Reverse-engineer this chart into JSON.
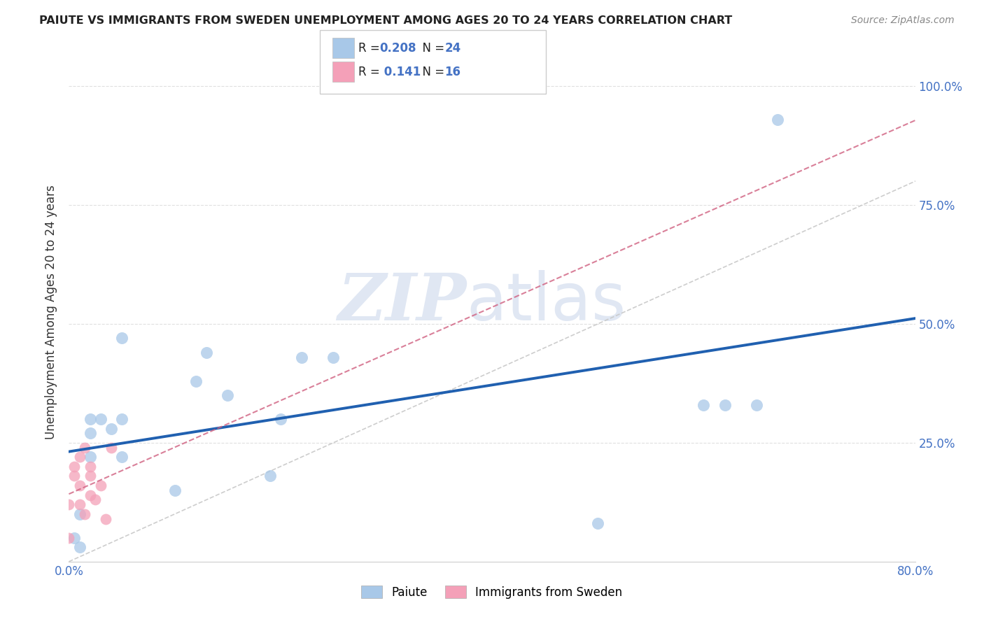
{
  "title": "PAIUTE VS IMMIGRANTS FROM SWEDEN UNEMPLOYMENT AMONG AGES 20 TO 24 YEARS CORRELATION CHART",
  "source": "Source: ZipAtlas.com",
  "ylabel": "Unemployment Among Ages 20 to 24 years",
  "xlim": [
    0.0,
    0.8
  ],
  "ylim": [
    0.0,
    1.05
  ],
  "paiute_x": [
    0.005,
    0.01,
    0.01,
    0.02,
    0.02,
    0.02,
    0.03,
    0.04,
    0.05,
    0.05,
    0.05,
    0.1,
    0.12,
    0.13,
    0.15,
    0.19,
    0.2,
    0.22,
    0.25,
    0.5,
    0.6,
    0.62,
    0.65,
    0.67
  ],
  "paiute_y": [
    0.05,
    0.03,
    0.1,
    0.22,
    0.27,
    0.3,
    0.3,
    0.28,
    0.3,
    0.22,
    0.47,
    0.15,
    0.38,
    0.44,
    0.35,
    0.18,
    0.3,
    0.43,
    0.43,
    0.08,
    0.33,
    0.33,
    0.33,
    0.93
  ],
  "sweden_x": [
    0.0,
    0.0,
    0.005,
    0.005,
    0.01,
    0.01,
    0.01,
    0.015,
    0.015,
    0.02,
    0.02,
    0.02,
    0.025,
    0.03,
    0.035,
    0.04
  ],
  "sweden_y": [
    0.05,
    0.12,
    0.18,
    0.2,
    0.12,
    0.16,
    0.22,
    0.1,
    0.24,
    0.14,
    0.18,
    0.2,
    0.13,
    0.16,
    0.09,
    0.24
  ],
  "paiute_color": "#a8c8e8",
  "sweden_color": "#f4a0b8",
  "paiute_line_color": "#2060b0",
  "sweden_line_color": "#d06080",
  "diagonal_color": "#c8c8c8",
  "R_paiute": 0.208,
  "N_paiute": 24,
  "R_sweden": 0.141,
  "N_sweden": 16,
  "watermark_zip": "ZIP",
  "watermark_atlas": "atlas",
  "background_color": "#ffffff",
  "grid_color": "#dddddd",
  "title_color": "#222222",
  "source_color": "#888888",
  "ylabel_color": "#333333",
  "tick_color": "#4472c4",
  "legend_edge_color": "#cccccc"
}
